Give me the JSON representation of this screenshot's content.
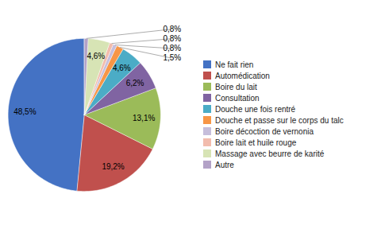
{
  "chart_data": {
    "type": "pie",
    "categories": [
      "Ne fait rien",
      "Automédication",
      "Boire du lait",
      "Consultation",
      "Douche une fois rentré",
      "Douche et passe sur le corps du talc",
      "Boire décoction de vernonia",
      "Boire lait et huile rouge",
      "Massage avec beurre de karité",
      "Autre"
    ],
    "values": [
      48.5,
      19.2,
      13.1,
      6.2,
      4.6,
      1.5,
      0.8,
      0.8,
      4.6,
      0.8
    ],
    "value_labels": [
      "48,5%",
      "19,2%",
      "13,1%",
      "6,2%",
      "4,6%",
      "1,5%",
      "0,8%",
      "0,8%",
      "4,6%",
      "0,8%"
    ],
    "colors": [
      "#4472C4",
      "#C0504D",
      "#9BBB59",
      "#8064A2",
      "#4BACC6",
      "#F79646",
      "#C6BEDB",
      "#F2BCAD",
      "#D7E4B5",
      "#B3A2C7"
    ],
    "data_labels": true,
    "legend": "right"
  }
}
